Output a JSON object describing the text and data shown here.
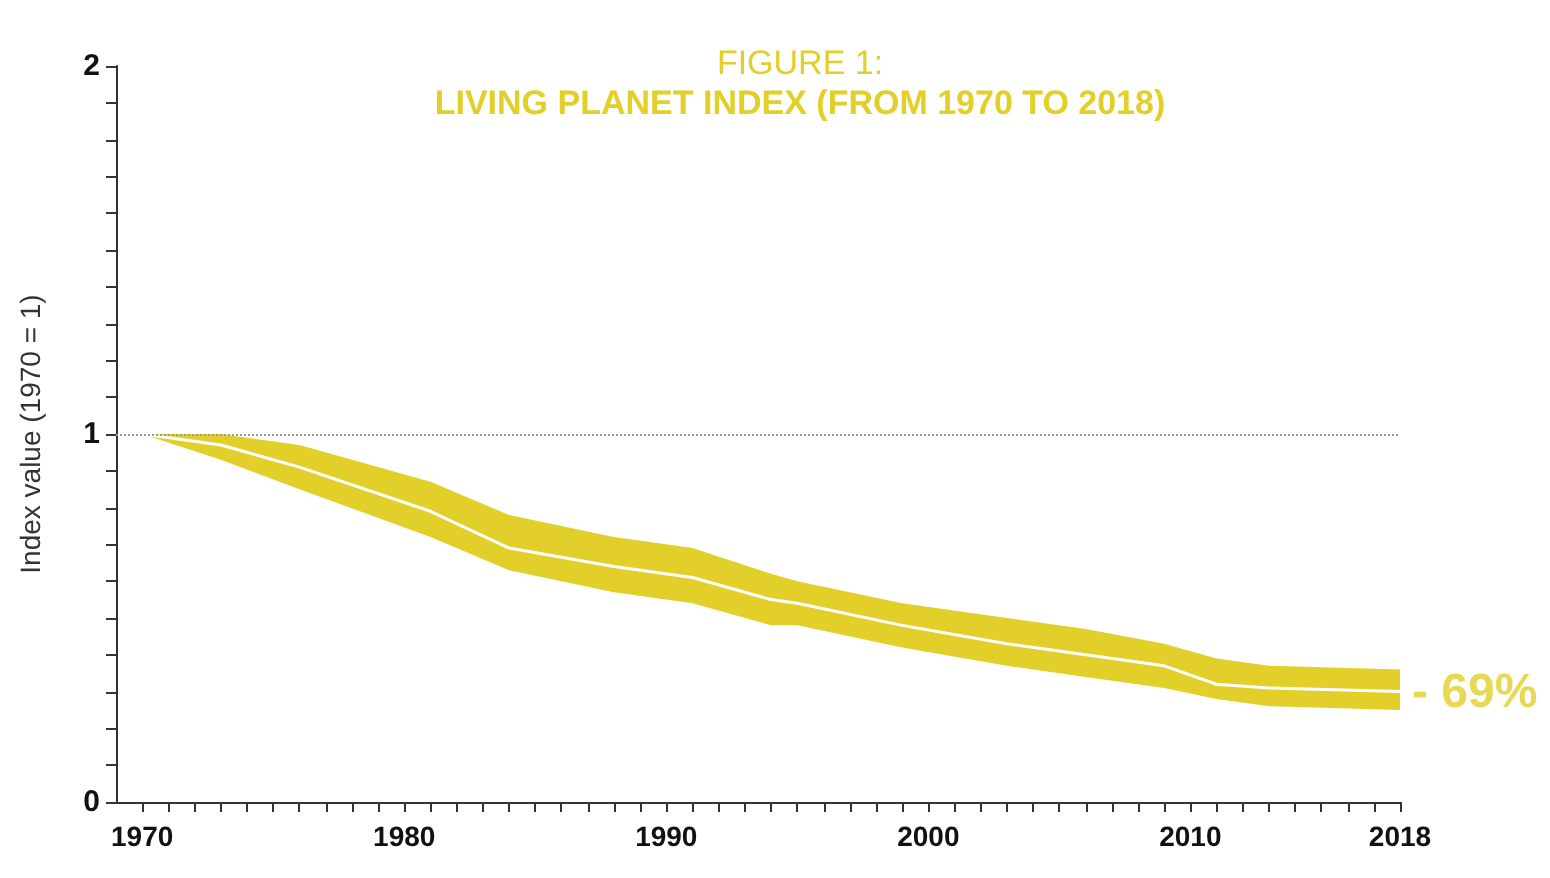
{
  "chart_data": {
    "type": "line",
    "title": "FIGURE 1:",
    "subtitle": "LIVING PLANET INDEX (FROM 1970 TO 2018)",
    "ylabel": "Index value (1970 = 1)",
    "series": [
      {
        "color": "#ffffff",
        "x": [
          1970,
          1973,
          1976,
          1981,
          1984,
          1988,
          1991,
          1994,
          1995,
          1999,
          2003,
          2006,
          2009,
          2011,
          2013,
          2018
        ],
        "values": [
          1.0,
          0.97,
          0.91,
          0.79,
          0.69,
          0.64,
          0.61,
          0.55,
          0.54,
          0.48,
          0.43,
          0.4,
          0.37,
          0.32,
          0.31,
          0.3
        ],
        "upper": [
          1.0,
          1.0,
          0.97,
          0.87,
          0.78,
          0.72,
          0.69,
          0.62,
          0.6,
          0.54,
          0.5,
          0.47,
          0.43,
          0.39,
          0.37,
          0.36
        ],
        "lower": [
          1.0,
          0.93,
          0.85,
          0.72,
          0.63,
          0.57,
          0.54,
          0.48,
          0.48,
          0.42,
          0.37,
          0.34,
          0.31,
          0.28,
          0.26,
          0.25
        ]
      }
    ],
    "xlim": [
      1969,
      2018
    ],
    "xticks": [
      1970,
      {
        "value": 1971,
        "label": null
      },
      {
        "value": 1972,
        "label": null
      },
      {
        "value": 1973,
        "label": null
      },
      {
        "value": 1974,
        "label": null
      },
      {
        "value": 1975,
        "label": null
      },
      {
        "value": 1976,
        "label": null
      },
      {
        "value": 1977,
        "label": null
      },
      {
        "value": 1978,
        "label": null
      },
      {
        "value": 1979,
        "label": null
      },
      1980,
      {
        "value": 1981,
        "label": null
      },
      {
        "value": 1982,
        "label": null
      },
      {
        "value": 1983,
        "label": null
      },
      {
        "value": 1984,
        "label": null
      },
      {
        "value": 1985,
        "label": null
      },
      {
        "value": 1986,
        "label": null
      },
      {
        "value": 1987,
        "label": null
      },
      {
        "value": 1988,
        "label": null
      },
      {
        "value": 1989,
        "label": null
      },
      1990,
      {
        "value": 1991,
        "label": null
      },
      {
        "value": 1992,
        "label": null
      },
      {
        "value": 1993,
        "label": null
      },
      {
        "value": 1994,
        "label": null
      },
      {
        "value": 1995,
        "label": null
      },
      {
        "value": 1996,
        "label": null
      },
      {
        "value": 1997,
        "label": null
      },
      {
        "value": 1998,
        "label": null
      },
      {
        "value": 1999,
        "label": null
      },
      2000,
      {
        "value": 2001,
        "label": null
      },
      {
        "value": 2002,
        "label": null
      },
      {
        "value": 2003,
        "label": null
      },
      {
        "value": 2004,
        "label": null
      },
      {
        "value": 2005,
        "label": null
      },
      {
        "value": 2006,
        "label": null
      },
      {
        "value": 2007,
        "label": null
      },
      {
        "value": 2008,
        "label": null
      },
      {
        "value": 2009,
        "label": null
      },
      2010,
      {
        "value": 2011,
        "label": null
      },
      {
        "value": 2012,
        "label": null
      },
      {
        "value": 2013,
        "label": null
      },
      {
        "value": 2014,
        "label": null
      },
      {
        "value": 2015,
        "label": null
      },
      {
        "value": 2016,
        "label": null
      },
      {
        "value": 2017,
        "label": null
      },
      2018
    ],
    "ylim": [
      0,
      2
    ],
    "yticks": [
      0,
      {
        "value": 0.1,
        "label": null
      },
      {
        "value": 0.2,
        "label": null
      },
      {
        "value": 0.3,
        "label": null
      },
      {
        "value": 0.4,
        "label": null
      },
      {
        "value": 0.5,
        "label": null
      },
      {
        "value": 0.6,
        "label": null
      },
      {
        "value": 0.7,
        "label": null
      },
      {
        "value": 0.8,
        "label": null
      },
      {
        "value": 0.9,
        "label": null
      },
      1,
      {
        "value": 1.1,
        "label": null
      },
      {
        "value": 1.2,
        "label": null
      },
      {
        "value": 1.3,
        "label": null
      },
      {
        "value": 1.4,
        "label": null
      },
      {
        "value": 1.5,
        "label": null
      },
      {
        "value": 1.6,
        "label": null
      },
      {
        "value": 1.7,
        "label": null
      },
      {
        "value": 1.8,
        "label": null
      },
      {
        "value": 1.9,
        "label": null
      },
      2
    ],
    "ref_lines": [
      {
        "axis": "y",
        "value": 1,
        "color": "#999999",
        "line_style": "dotted"
      }
    ],
    "annotations": [
      {
        "text": "- 69%",
        "x": 2018,
        "y": 0.3
      }
    ],
    "grid": false,
    "legend": false,
    "marker": "none",
    "line_style": "solid"
  }
}
